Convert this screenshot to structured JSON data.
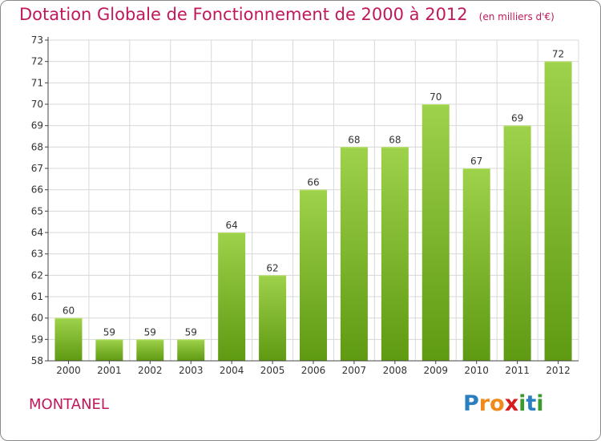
{
  "chart_data": {
    "type": "bar",
    "title": "Dotation Globale de Fonctionnement de 2000 à 2012",
    "subtitle": "(en milliers d'€)",
    "categories": [
      "2000",
      "2001",
      "2002",
      "2003",
      "2004",
      "2005",
      "2006",
      "2007",
      "2008",
      "2009",
      "2010",
      "2011",
      "2012"
    ],
    "values": [
      60,
      59,
      59,
      59,
      64,
      62,
      66,
      68,
      68,
      70,
      67,
      69,
      72
    ],
    "ylim": [
      58,
      73
    ],
    "yticks": [
      58,
      59,
      60,
      61,
      62,
      63,
      64,
      65,
      66,
      67,
      68,
      69,
      70,
      71,
      72,
      73
    ],
    "grid": true,
    "bar_color_top": "#9ed24a",
    "bar_color_bottom": "#5e9a12"
  },
  "commune": "MONTANEL",
  "logo": {
    "letters": [
      "P",
      "r",
      "o",
      "x",
      "i",
      "t",
      "i"
    ],
    "colors": [
      "#2a7fc1",
      "#f08a1a",
      "#f08a1a",
      "#d81c1c",
      "#3a9a2c",
      "#2a7fc1",
      "#3a9a2c"
    ]
  },
  "colors": {
    "accent": "#c0185c",
    "grid": "#d8d8d8",
    "axis": "#444444"
  }
}
